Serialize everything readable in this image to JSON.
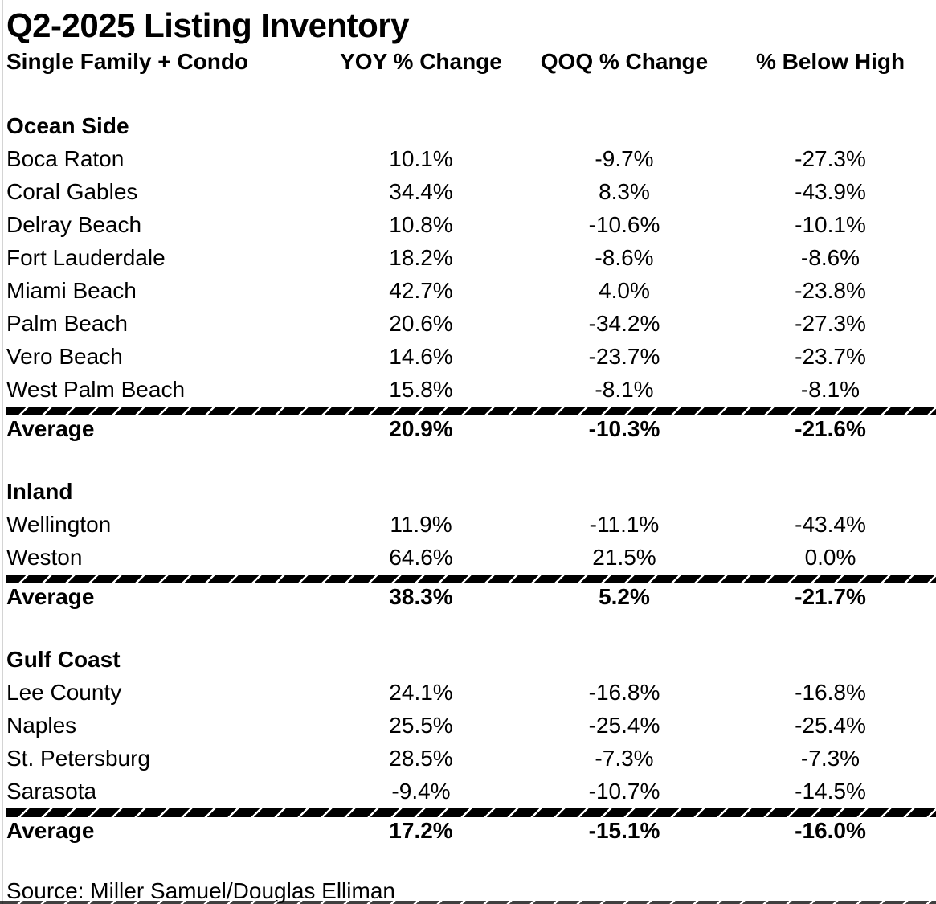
{
  "chart_data": {
    "type": "table",
    "title": "Q2-2025 Listing Inventory",
    "columns": [
      "Single Family + Condo",
      "YOY % Change",
      "QOQ % Change",
      "% Below High"
    ],
    "sections": [
      {
        "name": "Ocean Side",
        "rows": [
          {
            "label": "Boca Raton",
            "yoy": "10.1%",
            "qoq": "-9.7%",
            "below_high": "-27.3%"
          },
          {
            "label": "Coral Gables",
            "yoy": "34.4%",
            "qoq": "8.3%",
            "below_high": "-43.9%"
          },
          {
            "label": "Delray Beach",
            "yoy": "10.8%",
            "qoq": "-10.6%",
            "below_high": "-10.1%"
          },
          {
            "label": "Fort Lauderdale",
            "yoy": "18.2%",
            "qoq": "-8.6%",
            "below_high": "-8.6%"
          },
          {
            "label": "Miami Beach",
            "yoy": "42.7%",
            "qoq": "4.0%",
            "below_high": "-23.8%"
          },
          {
            "label": "Palm Beach",
            "yoy": "20.6%",
            "qoq": "-34.2%",
            "below_high": "-27.3%"
          },
          {
            "label": "Vero Beach",
            "yoy": "14.6%",
            "qoq": "-23.7%",
            "below_high": "-23.7%"
          },
          {
            "label": "West Palm Beach",
            "yoy": "15.8%",
            "qoq": "-8.1%",
            "below_high": "-8.1%"
          }
        ],
        "average": {
          "label": "Average",
          "yoy": "20.9%",
          "qoq": "-10.3%",
          "below_high": "-21.6%"
        }
      },
      {
        "name": "Inland",
        "rows": [
          {
            "label": "Wellington",
            "yoy": "11.9%",
            "qoq": "-11.1%",
            "below_high": "-43.4%"
          },
          {
            "label": "Weston",
            "yoy": "64.6%",
            "qoq": "21.5%",
            "below_high": "0.0%"
          }
        ],
        "average": {
          "label": "Average",
          "yoy": "38.3%",
          "qoq": "5.2%",
          "below_high": "-21.7%"
        }
      },
      {
        "name": "Gulf Coast",
        "rows": [
          {
            "label": "Lee County",
            "yoy": "24.1%",
            "qoq": "-16.8%",
            "below_high": "-16.8%"
          },
          {
            "label": "Naples",
            "yoy": "25.5%",
            "qoq": "-25.4%",
            "below_high": "-25.4%"
          },
          {
            "label": "St. Petersburg",
            "yoy": "28.5%",
            "qoq": "-7.3%",
            "below_high": "-7.3%"
          },
          {
            "label": "Sarasota",
            "yoy": "-9.4%",
            "qoq": "-10.7%",
            "below_high": "-14.5%"
          }
        ],
        "average": {
          "label": "Average",
          "yoy": "17.2%",
          "qoq": "-15.1%",
          "below_high": "-16.0%"
        }
      }
    ],
    "source": "Source: Miller Samuel/Douglas Elliman",
    "layout": {
      "grid": "off",
      "text_color": "#000000",
      "background_color": "#ffffff",
      "divider_style": "black hatched band above each Average row"
    }
  }
}
